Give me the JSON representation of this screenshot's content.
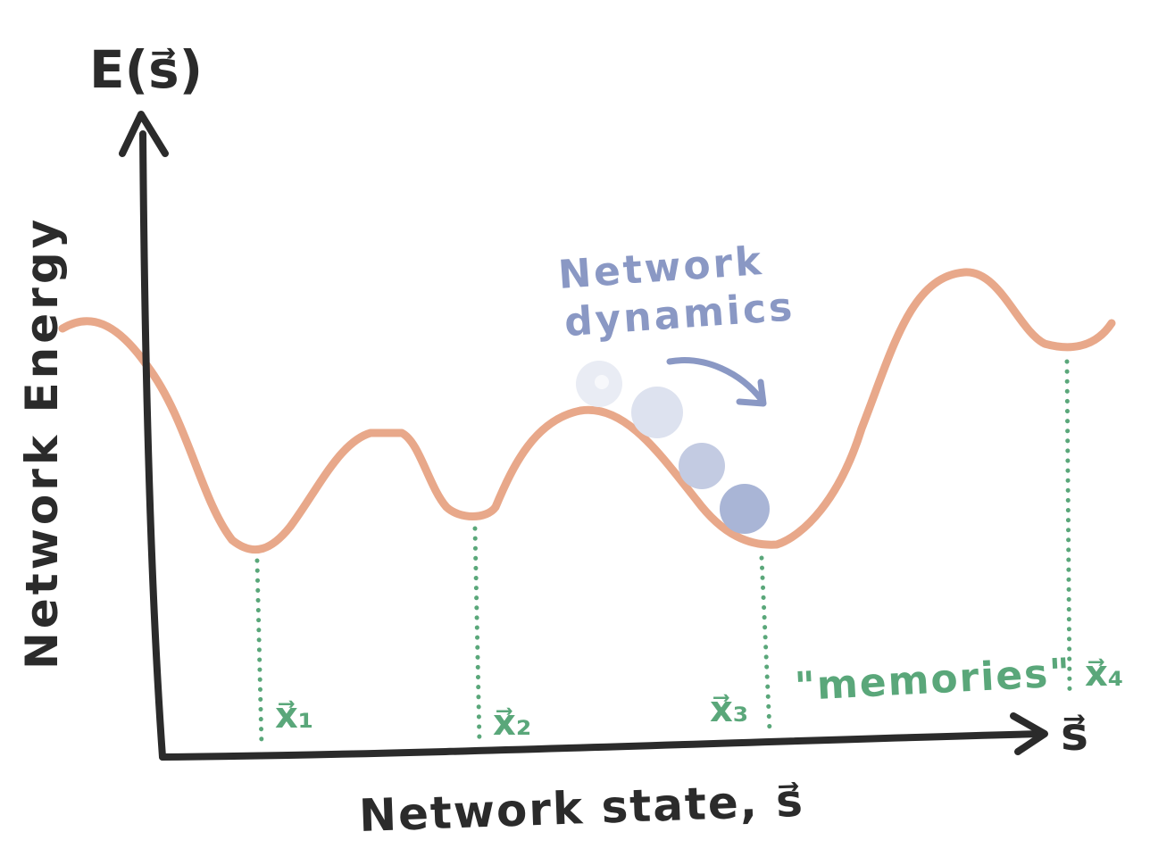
{
  "y_axis": {
    "symbol": "E(s⃗)",
    "label": "Network Energy"
  },
  "x_axis": {
    "symbol": "s⃗",
    "label": "Network state, s⃗"
  },
  "annotation": {
    "dynamics_line1": "Network",
    "dynamics_line2": "dynamics"
  },
  "memories_label": "\"memories\"",
  "minima": [
    {
      "label": "x⃗₁"
    },
    {
      "label": "x⃗₂"
    },
    {
      "label": "x⃗₃"
    },
    {
      "label": "x⃗₄"
    }
  ],
  "colors": {
    "axis": "#2b2b2b",
    "curve": "#e8a88a",
    "memory": "#5aa77a",
    "dynamics": "#8a98c4",
    "ball_1": "#e9ecf4",
    "ball_2": "#dde2ef",
    "ball_3": "#c3cbe2",
    "ball_4": "#a9b5d6"
  }
}
